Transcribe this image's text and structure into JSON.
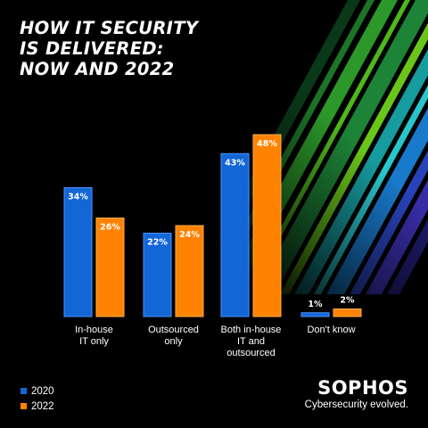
{
  "title_lines": [
    "HOW IT SECURITY",
    "IS DELIVERED:",
    "NOW AND 2022"
  ],
  "colors": {
    "2020": "#1366d6",
    "2022": "#ff8200",
    "background": "#000000"
  },
  "chart_data": {
    "type": "bar",
    "categories": [
      [
        "In-house",
        "IT only"
      ],
      [
        "Outsourced",
        "only"
      ],
      [
        "Both in-house",
        "IT and",
        "outsourced"
      ],
      [
        "Don't know"
      ]
    ],
    "series": [
      {
        "name": "2020",
        "values": [
          34,
          22,
          43,
          1
        ],
        "labels": [
          "34%",
          "22%",
          "43%",
          "1%"
        ]
      },
      {
        "name": "2022",
        "values": [
          26,
          24,
          48,
          2
        ],
        "labels": [
          "26%",
          "24%",
          "48%",
          "2%"
        ]
      }
    ],
    "value_unit": "%",
    "ylim": [
      0,
      48
    ],
    "grid": false,
    "legend_position": "bottom-left"
  },
  "legend": [
    {
      "label": "2020",
      "color": "#1366d6"
    },
    {
      "label": "2022",
      "color": "#ff8200"
    }
  ],
  "brand": {
    "name": "SOPHOS",
    "tagline": "Cybersecurity evolved."
  }
}
